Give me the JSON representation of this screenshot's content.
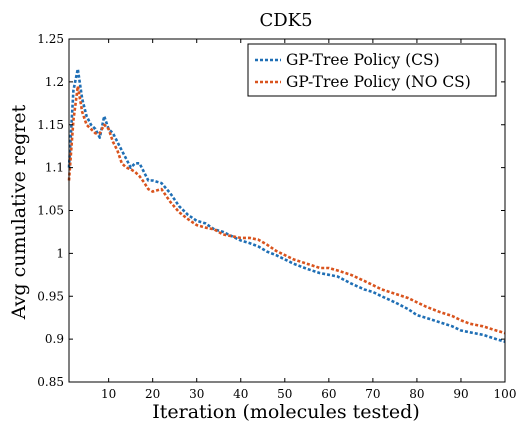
{
  "chart_data": {
    "type": "line",
    "title": "CDK5",
    "xlabel": "Iteration (molecules tested)",
    "ylabel": "Avg cumulative regret",
    "xlim": [
      1,
      100
    ],
    "ylim": [
      0.85,
      1.25
    ],
    "xticks": [
      10,
      20,
      30,
      40,
      50,
      60,
      70,
      80,
      90,
      100
    ],
    "yticks": [
      0.85,
      0.9,
      0.95,
      1,
      1.05,
      1.1,
      1.15,
      1.2,
      1.25
    ],
    "ytick_labels": [
      "0.85",
      "0.9",
      "0.95",
      "1",
      "1.05",
      "1.1",
      "1.15",
      "1.2",
      "1.25"
    ],
    "grid": false,
    "legend_position": "top-right",
    "series": [
      {
        "name": "GP-Tree Policy (CS)",
        "color": "#1f6fb5",
        "dash": "dotted",
        "points": [
          [
            1,
            1.1
          ],
          [
            2,
            1.19
          ],
          [
            3,
            1.215
          ],
          [
            4,
            1.18
          ],
          [
            5,
            1.16
          ],
          [
            6,
            1.15
          ],
          [
            7,
            1.145
          ],
          [
            8,
            1.135
          ],
          [
            9,
            1.16
          ],
          [
            10,
            1.145
          ],
          [
            11,
            1.14
          ],
          [
            12,
            1.13
          ],
          [
            13,
            1.12
          ],
          [
            14,
            1.11
          ],
          [
            15,
            1.1
          ],
          [
            16,
            1.105
          ],
          [
            17,
            1.105
          ],
          [
            18,
            1.095
          ],
          [
            19,
            1.085
          ],
          [
            20,
            1.085
          ],
          [
            22,
            1.082
          ],
          [
            24,
            1.07
          ],
          [
            26,
            1.055
          ],
          [
            28,
            1.045
          ],
          [
            30,
            1.038
          ],
          [
            32,
            1.035
          ],
          [
            34,
            1.028
          ],
          [
            36,
            1.025
          ],
          [
            38,
            1.02
          ],
          [
            40,
            1.015
          ],
          [
            42,
            1.012
          ],
          [
            44,
            1.008
          ],
          [
            46,
            1.002
          ],
          [
            48,
            0.998
          ],
          [
            50,
            0.993
          ],
          [
            52,
            0.988
          ],
          [
            55,
            0.982
          ],
          [
            58,
            0.977
          ],
          [
            60,
            0.975
          ],
          [
            62,
            0.973
          ],
          [
            65,
            0.965
          ],
          [
            68,
            0.958
          ],
          [
            70,
            0.955
          ],
          [
            72,
            0.95
          ],
          [
            75,
            0.943
          ],
          [
            78,
            0.935
          ],
          [
            80,
            0.928
          ],
          [
            82,
            0.925
          ],
          [
            85,
            0.92
          ],
          [
            88,
            0.915
          ],
          [
            90,
            0.91
          ],
          [
            92,
            0.908
          ],
          [
            95,
            0.905
          ],
          [
            98,
            0.9
          ],
          [
            100,
            0.897
          ]
        ]
      },
      {
        "name": "GP-Tree Policy (NO CS)",
        "color": "#d9541e",
        "dash": "dotted",
        "points": [
          [
            1,
            1.085
          ],
          [
            2,
            1.155
          ],
          [
            3,
            1.195
          ],
          [
            4,
            1.165
          ],
          [
            5,
            1.15
          ],
          [
            6,
            1.145
          ],
          [
            7,
            1.14
          ],
          [
            8,
            1.14
          ],
          [
            9,
            1.15
          ],
          [
            10,
            1.145
          ],
          [
            11,
            1.13
          ],
          [
            12,
            1.12
          ],
          [
            13,
            1.105
          ],
          [
            14,
            1.1
          ],
          [
            15,
            1.098
          ],
          [
            16,
            1.095
          ],
          [
            17,
            1.09
          ],
          [
            18,
            1.083
          ],
          [
            19,
            1.075
          ],
          [
            20,
            1.072
          ],
          [
            22,
            1.075
          ],
          [
            24,
            1.06
          ],
          [
            26,
            1.048
          ],
          [
            28,
            1.04
          ],
          [
            30,
            1.033
          ],
          [
            32,
            1.03
          ],
          [
            34,
            1.028
          ],
          [
            36,
            1.022
          ],
          [
            38,
            1.02
          ],
          [
            40,
            1.018
          ],
          [
            42,
            1.018
          ],
          [
            44,
            1.016
          ],
          [
            46,
            1.01
          ],
          [
            48,
            1.003
          ],
          [
            50,
            0.998
          ],
          [
            52,
            0.993
          ],
          [
            55,
            0.988
          ],
          [
            58,
            0.983
          ],
          [
            60,
            0.983
          ],
          [
            62,
            0.98
          ],
          [
            65,
            0.975
          ],
          [
            68,
            0.968
          ],
          [
            70,
            0.963
          ],
          [
            72,
            0.958
          ],
          [
            75,
            0.953
          ],
          [
            78,
            0.948
          ],
          [
            80,
            0.943
          ],
          [
            82,
            0.938
          ],
          [
            85,
            0.932
          ],
          [
            88,
            0.927
          ],
          [
            90,
            0.922
          ],
          [
            92,
            0.918
          ],
          [
            95,
            0.915
          ],
          [
            98,
            0.91
          ],
          [
            100,
            0.907
          ]
        ]
      }
    ]
  }
}
